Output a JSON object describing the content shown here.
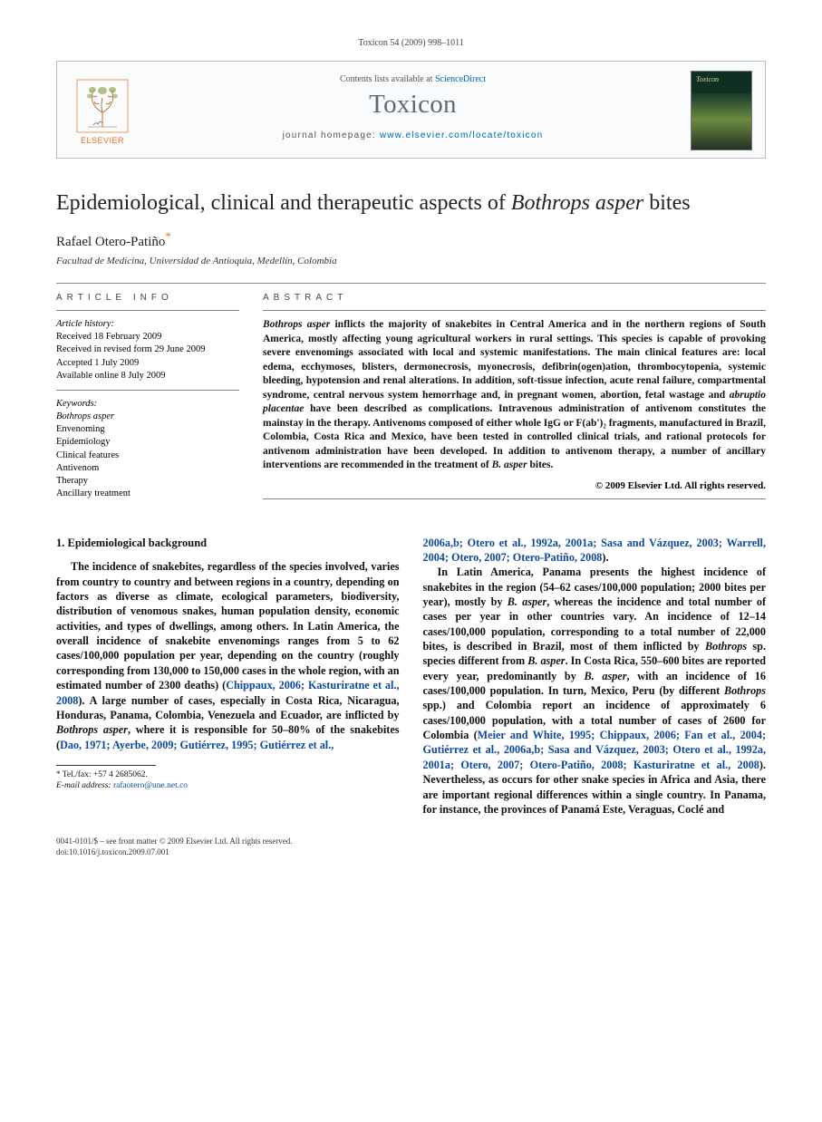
{
  "running_header": "Toxicon 54 (2009) 998–1011",
  "header": {
    "contents_prefix": "Contents lists available at ",
    "sciencedirect": "ScienceDirect",
    "journal": "Toxicon",
    "homepage_prefix": "journal homepage: ",
    "homepage_url": "www.elsevier.com/locate/toxicon",
    "elsevier_label": "ELSEVIER",
    "cover_label": "Toxicon"
  },
  "title_pre": "Epidemiological, clinical and therapeutic aspects of ",
  "title_species": "Bothrops asper",
  "title_post": " bites",
  "author": "Rafael Otero-Patiño",
  "corr_marker": "*",
  "affiliation": "Facultad de Medicina, Universidad de Antioquia, Medellín, Colombia",
  "article_info": {
    "title": "ARTICLE INFO",
    "history_label": "Article history:",
    "history": [
      "Received 18 February 2009",
      "Received in revised form 29 June 2009",
      "Accepted 1 July 2009",
      "Available online 8 July 2009"
    ],
    "keywords_label": "Keywords:",
    "keywords": [
      "Bothrops asper",
      "Envenoming",
      "Epidemiology",
      "Clinical features",
      "Antivenom",
      "Therapy",
      "Ancillary treatment"
    ]
  },
  "abstract": {
    "title": "ABSTRACT",
    "text_parts": [
      {
        "t": "species",
        "v": "Bothrops asper"
      },
      {
        "t": "txt",
        "v": " inflicts the majority of snakebites in Central America and in the northern regions of South America, mostly affecting young agricultural workers in rural settings. This species is capable of provoking severe envenomings associated with local and systemic manifestations. The main clinical features are: local edema, ecchymoses, blisters, dermonecrosis, myonecrosis, defibrin(ogen)ation, thrombocytopenia, systemic bleeding, hypotension and renal alterations. In addition, soft-tissue infection, acute renal failure, compartmental syndrome, central nervous system hemorrhage and, in pregnant women, abortion, fetal wastage and "
      },
      {
        "t": "species",
        "v": "abruptio placentae"
      },
      {
        "t": "txt",
        "v": " have been described as complications. Intravenous administration of antivenom constitutes the mainstay in the therapy. Antivenoms composed of either whole IgG or F(ab')₂ fragments, manufactured in Brazil, Colombia, Costa Rica and Mexico, have been tested in controlled clinical trials, and rational protocols for antivenom administration have been developed. In addition to antivenom therapy, a number of ancillary interventions are recommended in the treatment of "
      },
      {
        "t": "species",
        "v": "B. asper"
      },
      {
        "t": "txt",
        "v": " bites."
      }
    ],
    "copyright": "© 2009 Elsevier Ltd. All rights reserved."
  },
  "section1": {
    "heading": "1. Epidemiological background",
    "para1_parts": [
      {
        "t": "txt",
        "v": "The incidence of snakebites, regardless of the species involved, varies from country to country and between regions in a country, depending on factors as diverse as climate, ecological parameters, biodiversity, distribution of venomous snakes, human population density, economic activities, and types of dwellings, among others. In Latin America, the overall incidence of snakebite envenomings ranges from 5 to 62 cases/100,000 population per year, depending on the country (roughly corresponding from 130,000 to 150,000 cases in the whole region, with an estimated number of 2300 deaths) ("
      },
      {
        "t": "ref",
        "v": "Chippaux, 2006; Kasturiratne et al., 2008"
      },
      {
        "t": "txt",
        "v": "). A large number of cases, especially in Costa Rica, Nicaragua, Honduras, Panama, Colombia, Venezuela and Ecuador, are inflicted by "
      },
      {
        "t": "species",
        "v": "Bothrops asper"
      },
      {
        "t": "txt",
        "v": ", where it is responsible for 50–80% of the snakebites ("
      },
      {
        "t": "ref",
        "v": "Dao, 1971; Ayerbe, 2009; Gutiérrez, 1995; Gutiérrez et al., "
      }
    ],
    "para1_cont_parts": [
      {
        "t": "ref",
        "v": "2006a,b; Otero et al., 1992a, 2001a; Sasa and Vázquez, 2003; Warrell, 2004; Otero, 2007; Otero-Patiño, 2008"
      },
      {
        "t": "txt",
        "v": ")."
      }
    ],
    "para2_parts": [
      {
        "t": "txt",
        "v": "In Latin America, Panama presents the highest incidence of snakebites in the region (54–62 cases/100,000 population; 2000 bites per year), mostly by "
      },
      {
        "t": "species",
        "v": "B. asper"
      },
      {
        "t": "txt",
        "v": ", whereas the incidence and total number of cases per year in other countries vary. An incidence of 12–14 cases/100,000 population, corresponding to a total number of 22,000 bites, is described in Brazil, most of them inflicted by "
      },
      {
        "t": "species",
        "v": "Bothrops"
      },
      {
        "t": "txt",
        "v": " sp. species different from "
      },
      {
        "t": "species",
        "v": "B. asper"
      },
      {
        "t": "txt",
        "v": ". In Costa Rica, 550–600 bites are reported every year, predominantly by "
      },
      {
        "t": "species",
        "v": "B. asper"
      },
      {
        "t": "txt",
        "v": ", with an incidence of 16 cases/100,000 population. In turn, Mexico, Peru (by different "
      },
      {
        "t": "species",
        "v": "Bothrops"
      },
      {
        "t": "txt",
        "v": " spp.) and Colombia report an incidence of approximately 6 cases/100,000 population, with a total number of cases of 2600 for Colombia ("
      },
      {
        "t": "ref",
        "v": "Meier and White, 1995; Chippaux, 2006; Fan et al., 2004; Gutiérrez et al., 2006a,b; Sasa and Vázquez, 2003; Otero et al., 1992a, 2001a; Otero, 2007; Otero-Patiño, 2008; Kasturiratne et al., 2008"
      },
      {
        "t": "txt",
        "v": "). Nevertheless, as occurs for other snake species in Africa and Asia, there are important regional differences within a single country. In Panama, for instance, the provinces of Panamá Este, Veraguas, Coclé and"
      }
    ]
  },
  "footnotes": {
    "telfax_label": "Tel./fax:",
    "telfax": "+57 4 2685062.",
    "email_label": "E-mail address:",
    "email": "rafaotero@une.net.co"
  },
  "bottom": {
    "line1": "0041-0101/$ – see front matter © 2009 Elsevier Ltd. All rights reserved.",
    "line2": "doi:10.1016/j.toxicon.2009.07.001"
  },
  "colors": {
    "elsevier_orange": "#E9711C",
    "link_blue": "#0d499c",
    "journal_gray": "#5a6b78"
  }
}
